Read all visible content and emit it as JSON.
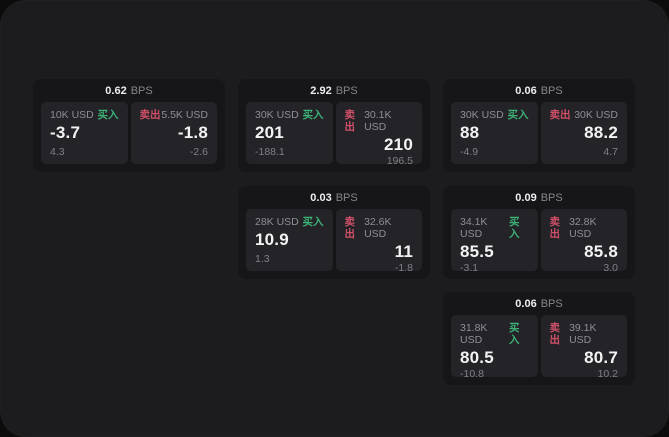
{
  "labels": {
    "buy": "买入",
    "sell": "卖出",
    "bps": "BPS"
  },
  "theme": {
    "buy_color": "#3cb176",
    "sell_color": "#d15068",
    "page_bg": "#1c1c1e",
    "card_bg": "#161619",
    "panel_bg": "#242428"
  },
  "cards": [
    {
      "bps": "0.62",
      "buy": {
        "amount": "10K USD",
        "value": "-3.7",
        "sub": "4.3"
      },
      "sell": {
        "amount": "5.5K USD",
        "value": "-1.8",
        "sub": "-2.6"
      }
    },
    {
      "bps": "2.92",
      "buy": {
        "amount": "30K USD",
        "value": "201",
        "sub": "-188.1"
      },
      "sell": {
        "amount": "30.1K USD",
        "value": "210",
        "sub": "196.5"
      }
    },
    {
      "bps": "0.06",
      "buy": {
        "amount": "30K USD",
        "value": "88",
        "sub": "-4.9"
      },
      "sell": {
        "amount": "30K USD",
        "value": "88.2",
        "sub": "4.7"
      }
    },
    {
      "bps": "0.03",
      "buy": {
        "amount": "28K USD",
        "value": "10.9",
        "sub": "1.3"
      },
      "sell": {
        "amount": "32.6K USD",
        "value": "11",
        "sub": "-1.8"
      }
    },
    {
      "bps": "0.09",
      "buy": {
        "amount": "34.1K USD",
        "value": "85.5",
        "sub": "-3.1"
      },
      "sell": {
        "amount": "32.8K USD",
        "value": "85.8",
        "sub": "3.0"
      }
    },
    {
      "bps": "0.06",
      "buy": {
        "amount": "31.8K USD",
        "value": "80.5",
        "sub": "-10.8"
      },
      "sell": {
        "amount": "39.1K USD",
        "value": "80.7",
        "sub": "10.2"
      }
    }
  ]
}
